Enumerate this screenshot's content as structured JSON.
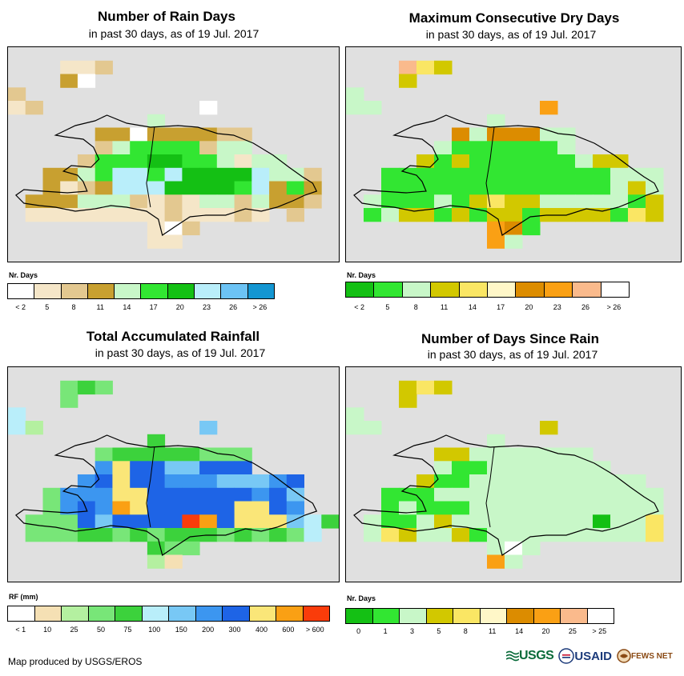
{
  "colors": {
    "rain_days": [
      "#ffffff",
      "#f5e6c8",
      "#e3c890",
      "#c8a030",
      "#c8f7c8",
      "#32e632",
      "#14c014",
      "#b9eefa",
      "#6cc3f5",
      "#1496d2"
    ],
    "dry_days": [
      "#14c014",
      "#32e632",
      "#c8f7c8",
      "#d2c800",
      "#fae664",
      "#fff7c8",
      "#dc8c00",
      "#faa014",
      "#faba8c",
      "#ffffff"
    ],
    "rainfall": [
      "#ffffff",
      "#f5e0b4",
      "#b4f0a0",
      "#78e678",
      "#3cd23c",
      "#b9eefa",
      "#78c8f5",
      "#3c96f0",
      "#1e64e6",
      "#fae678",
      "#faa014",
      "#fa3c0a"
    ],
    "days_since": [
      "#14c014",
      "#32e632",
      "#c8f7c8",
      "#d2c800",
      "#fae664",
      "#fff7c8",
      "#dc8c00",
      "#faa014",
      "#faba8c",
      "#ffffff"
    ],
    "map_background": "#e0e0e0"
  },
  "panels": [
    {
      "title": "Number of Rain Days",
      "subtitle": "in past 30 days, as of 19 Jul. 2017",
      "legend_title": "Nr. Days",
      "legend_labels": [
        "< 2",
        "5",
        "8",
        "11",
        "14",
        "17",
        "20",
        "23",
        "26",
        "> 26"
      ]
    },
    {
      "title": "Maximum Consecutive Dry Days",
      "subtitle": "in past 30 days, as of 19 Jul. 2017",
      "legend_title": "Nr. Days",
      "legend_labels": [
        "< 2",
        "5",
        "8",
        "11",
        "14",
        "17",
        "20",
        "23",
        "26",
        "> 26"
      ]
    },
    {
      "title": "Total Accumulated Rainfall",
      "subtitle": "in past 30 days, as of 19 Jul. 2017",
      "legend_title": "RF (mm)",
      "legend_labels": [
        "< 1",
        "10",
        "25",
        "50",
        "75",
        "100",
        "150",
        "200",
        "300",
        "400",
        "600",
        "> 600"
      ]
    },
    {
      "title": "Number of Days Since Rain",
      "subtitle": "in past 30 days, as of 19 Jul. 2017",
      "legend_title": "Nr. Days",
      "legend_labels": [
        "0",
        "1",
        "3",
        "5",
        "8",
        "11",
        "14",
        "20",
        "25",
        "> 25"
      ]
    }
  ],
  "grids": {
    "rain_days": [
      "...................",
      "...112.............",
      "...30..............",
      "2..................",
      "12.........0.......",
      "........4..........",
      ".....330333322.....",
      ".....245555244.....",
      "....255566554144...",
      "..3345775766667442.",
      "..3123777666657353.",
      ".33344421214424332.",
      ".11111111211121.2..",
      "........102........",
      "........11.........",
      "..................."
    ],
    "dry_days": [
      "...................",
      "...843.............",
      "...3...............",
      "2..................",
      "22.........7.......",
      "........2..........",
      "......6266622......",
      ".....21111112......",
      "....313111111233...",
      "..1111111111111222.",
      "..1111111111111232.",
      ".21112134332222213.",
      ".12331313313333143.",
      "........761........",
      "........72.........",
      "..................."
    ],
    "rainfall": [
      "...................",
      "...343.............",
      "...3...............",
      "5..................",
      "52.........6.......",
      "........4..........",
      ".....344444333.....",
      ".....798866888.....",
      "....7898877766678..",
      "..377799888888786..",
      "..3787a9888889987..",
      ".333868888ba8999654.",
      ".33344343444343435.",
      "........433........",
      "........21.........",
      "..................."
    ],
    "days_since": [
      "...................",
      "...343.............",
      "...3...............",
      "2..................",
      "22.........3.......",
      "........2..........",
      ".....332222222.....",
      ".....2112222222....",
      "....3112222222222..",
      "..1112222222222222.",
      "..1211122222222222.",
      ".21123222222220224.",
      ".24322312222222224.",
      "........292........",
      "........72.........",
      "..................."
    ]
  },
  "footer": "Map produced by USGS/EROS",
  "logos": {
    "usgs": "USGS",
    "usaid": "USAID",
    "fews": "FEWS NET"
  }
}
